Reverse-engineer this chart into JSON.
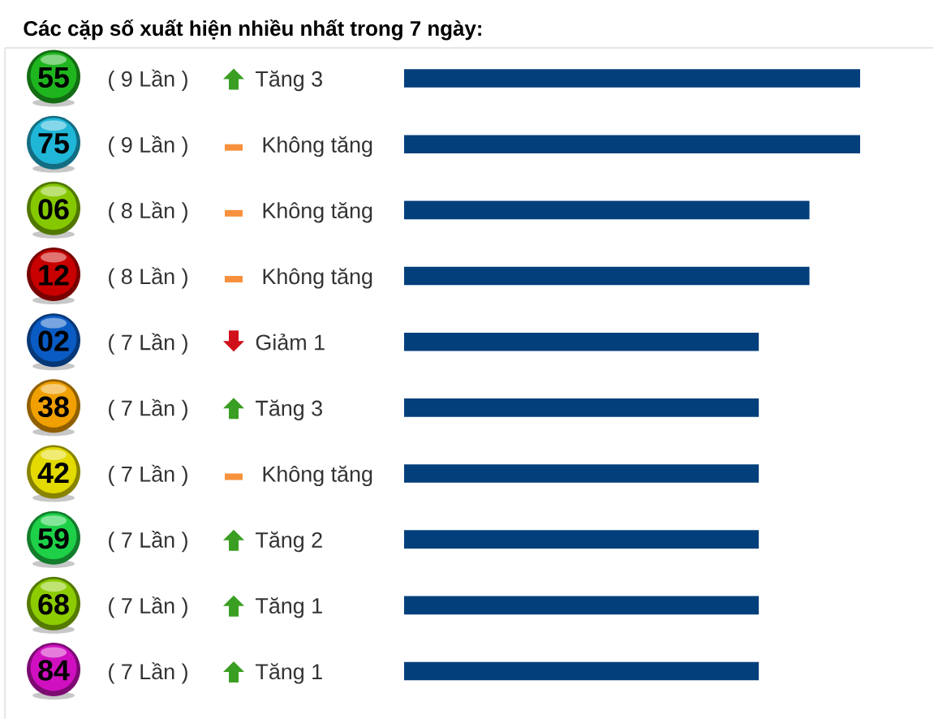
{
  "chart_data": {
    "type": "bar",
    "orientation": "horizontal",
    "title": "Các cặp số xuất hiện nhiều nhất trong 7 ngày:",
    "categories": [
      "55",
      "75",
      "06",
      "12",
      "02",
      "38",
      "42",
      "59",
      "68",
      "84"
    ],
    "values": [
      9,
      9,
      8,
      8,
      7,
      7,
      7,
      7,
      7,
      7
    ],
    "value_labels": [
      "( 9 Lần )",
      "( 9 Lần )",
      "( 8 Lần )",
      "( 8 Lần )",
      "( 7 Lần )",
      "( 7 Lần )",
      "( 7 Lần )",
      "( 7 Lần )",
      "( 7 Lần )",
      "( 7 Lần )"
    ],
    "color": "#023f7b",
    "annotations": [
      "Tăng 3",
      "Không tăng",
      "Không tăng",
      "Không tăng",
      "Giảm 1",
      "Tăng 3",
      "Không tăng",
      "Tăng 2",
      "Tăng 1",
      "Tăng 1"
    ]
  }
}
